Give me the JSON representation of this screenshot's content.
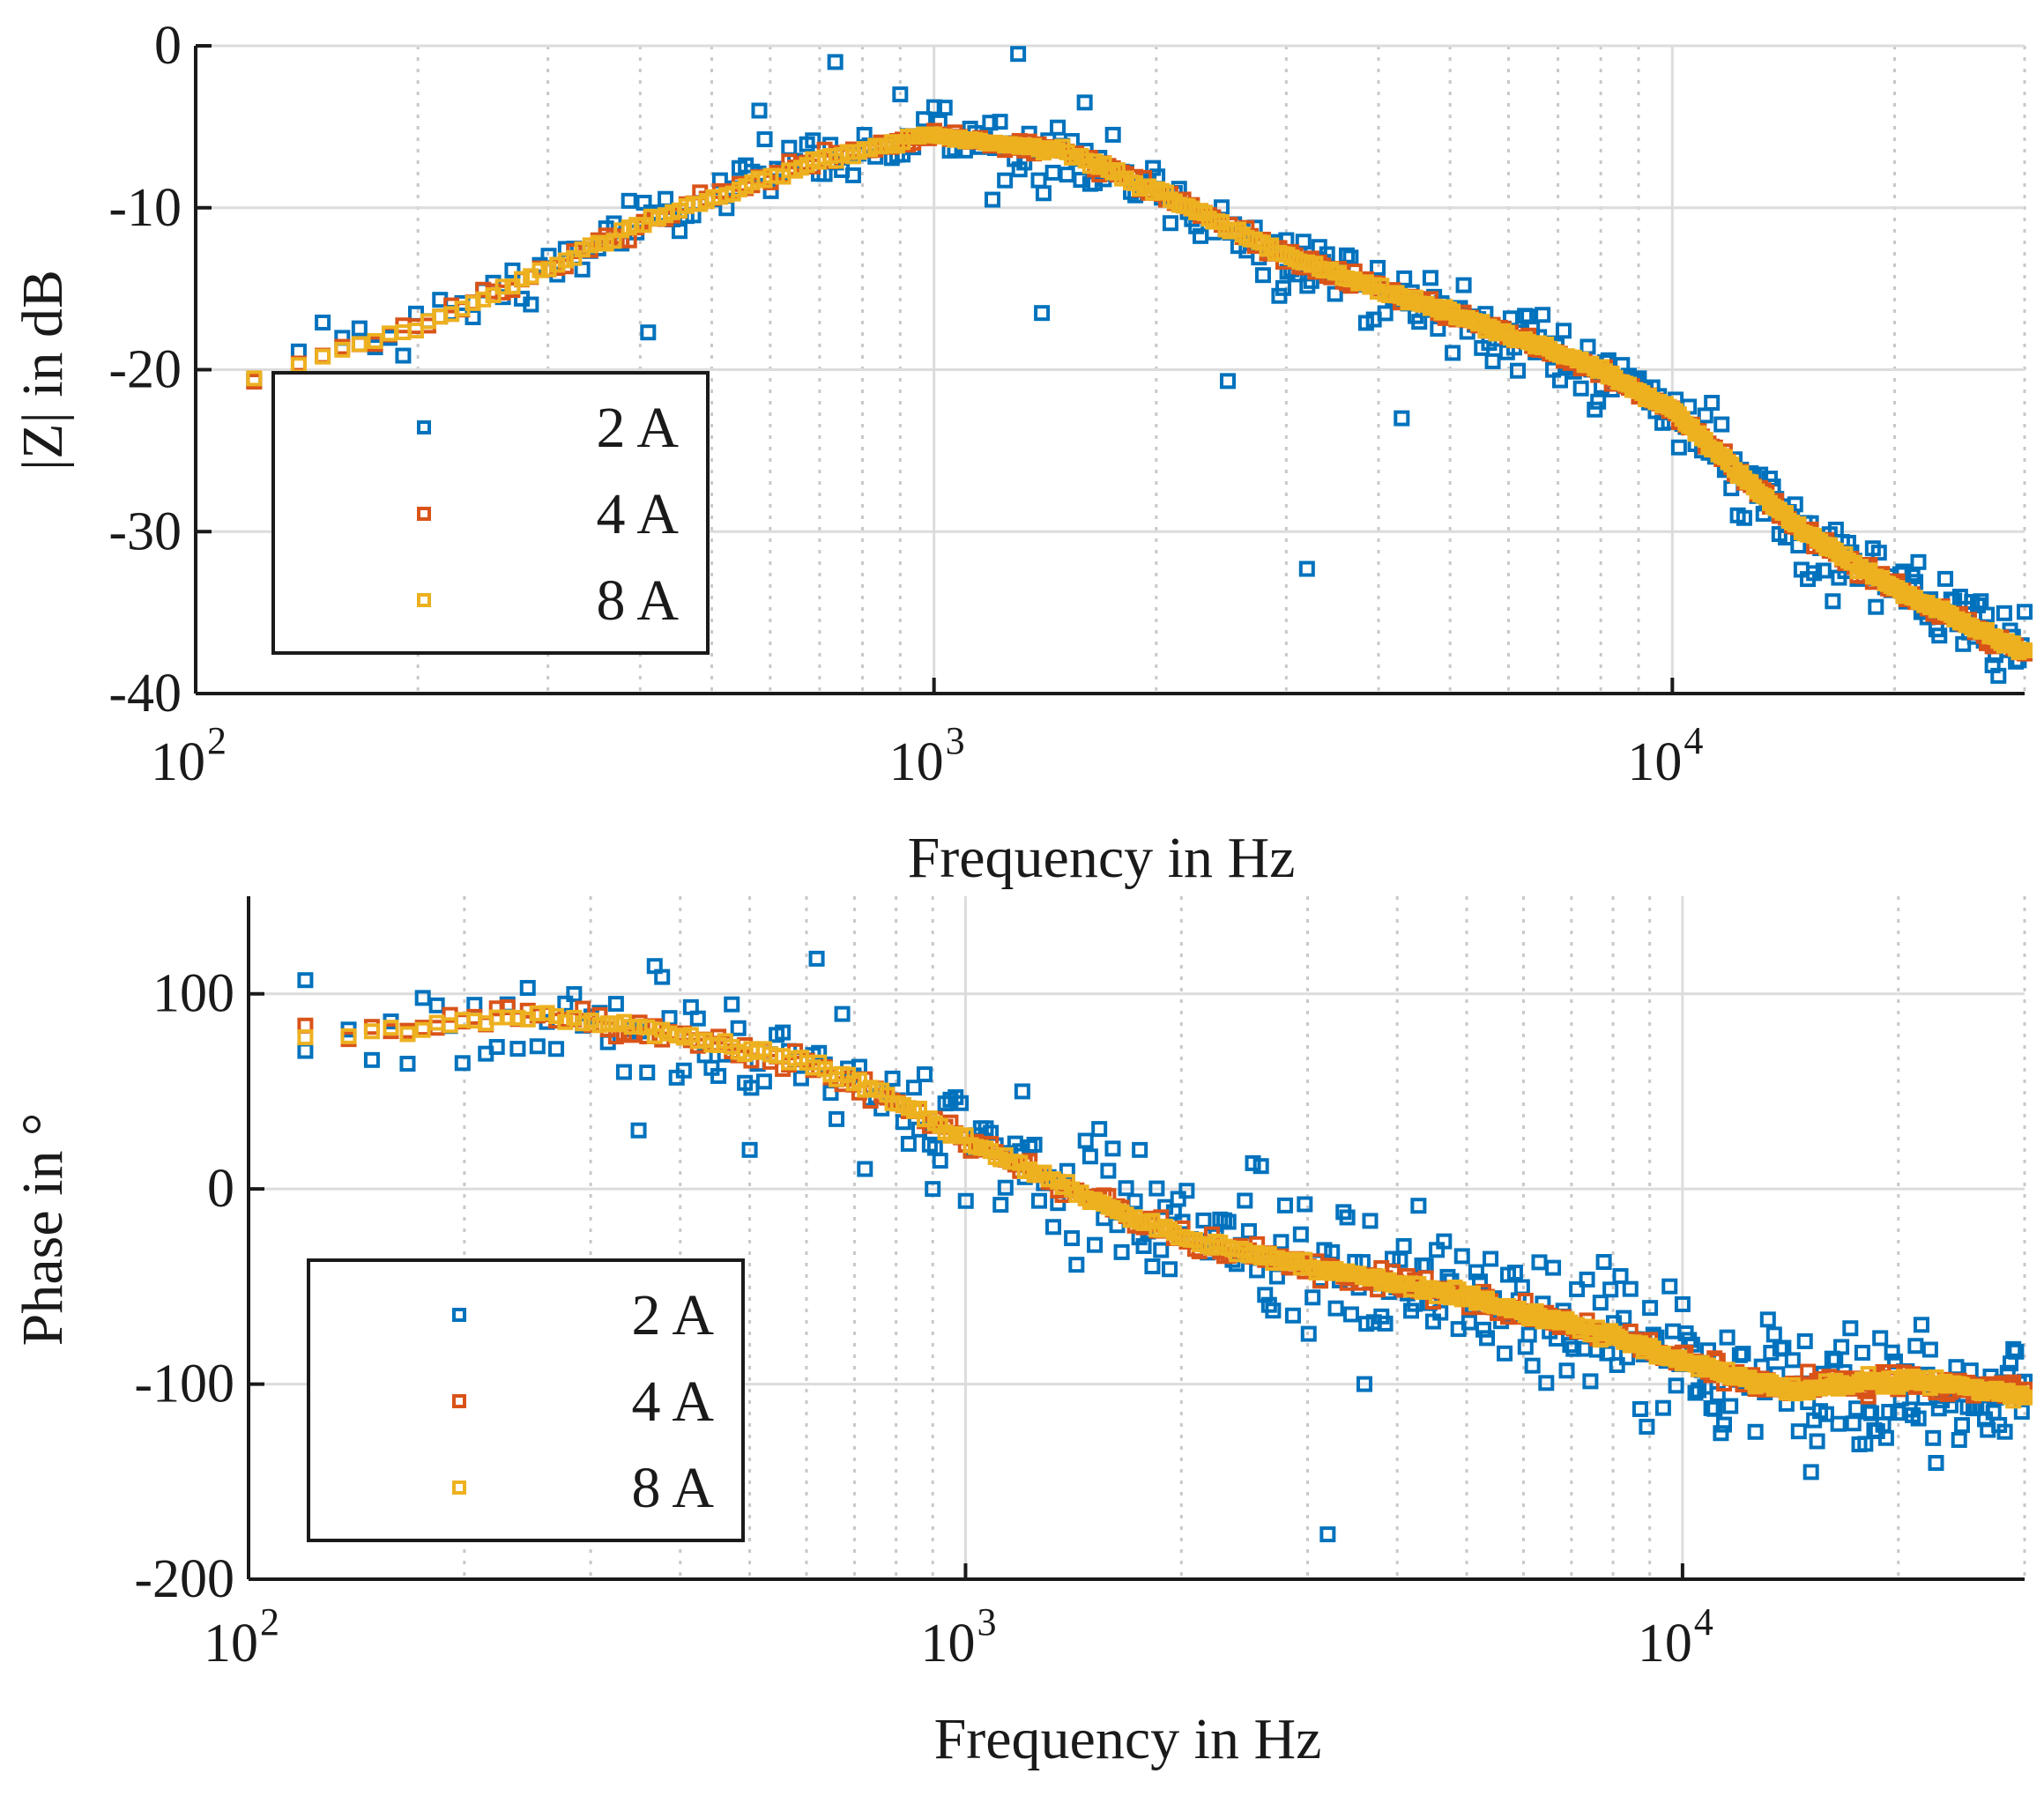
{
  "chart_data": [
    {
      "type": "scatter",
      "xscale": "log",
      "xlabel": "Frequency in Hz",
      "ylabel": "|Z| in dB",
      "xlim": [
        100,
        30000
      ],
      "ylim": [
        -40,
        0
      ],
      "xticks": [
        100,
        1000,
        10000
      ],
      "xtick_labels": [
        {
          "base": "10",
          "exp": "2"
        },
        {
          "base": "10",
          "exp": "3"
        },
        {
          "base": "10",
          "exp": "4"
        }
      ],
      "yticks": [
        0,
        -10,
        -20,
        -30,
        -40
      ],
      "ytick_labels": [
        "0",
        "-10",
        "-20",
        "-30",
        "-40"
      ],
      "grid": true,
      "legend_position": "left",
      "series": [
        {
          "name": "2 A",
          "color": "#0072BD",
          "anchors_f": [
            120,
            200,
            400,
            700,
            1000,
            1500,
            2000,
            3000,
            5000,
            8000,
            10000,
            15000,
            20000,
            30000
          ],
          "anchors_v": [
            -20,
            -17.5,
            -11,
            -7,
            -5.5,
            -6.5,
            -9,
            -13,
            -16.5,
            -20,
            -22.5,
            -30,
            -33.5,
            -37.5
          ],
          "scatter_rel": 0.05,
          "outliers": [
            [
              735,
              -1
            ],
            [
              1300,
              -0.5
            ],
            [
              1600,
              -3.5
            ],
            [
              1400,
              -16.5
            ],
            [
              3200,
              -32.3
            ],
            [
              580,
              -4
            ],
            [
              2500,
              -20.7
            ],
            [
              4300,
              -23
            ],
            [
              410,
              -17.7
            ],
            [
              900,
              -3
            ],
            [
              1200,
              -9.5
            ],
            [
              3000,
              -12
            ]
          ]
        },
        {
          "name": "4 A",
          "color": "#D95319",
          "anchors_f": [
            120,
            200,
            400,
            700,
            1000,
            1500,
            2000,
            3000,
            5000,
            8000,
            10000,
            15000,
            20000,
            30000
          ],
          "anchors_v": [
            -20.5,
            -17.5,
            -11,
            -7,
            -5.5,
            -6.5,
            -9,
            -13,
            -16.5,
            -20,
            -22.5,
            -30,
            -33.5,
            -37.5
          ],
          "scatter_rel": 0.012,
          "outliers": []
        },
        {
          "name": "8 A",
          "color": "#EDB120",
          "anchors_f": [
            120,
            200,
            400,
            700,
            1000,
            1500,
            2000,
            3000,
            5000,
            8000,
            10000,
            15000,
            20000,
            30000
          ],
          "anchors_v": [
            -20.5,
            -17.5,
            -11,
            -7,
            -5.5,
            -6.5,
            -9,
            -13,
            -16.5,
            -20,
            -22.5,
            -30,
            -33.5,
            -37.5
          ],
          "scatter_rel": 0.006,
          "outliers": []
        }
      ]
    },
    {
      "type": "scatter",
      "xscale": "log",
      "xlabel": "Frequency in Hz",
      "ylabel": "Phase in °",
      "xlim": [
        100,
        30000
      ],
      "ylim": [
        -200,
        150
      ],
      "xticks": [
        100,
        1000,
        10000
      ],
      "xtick_labels": [
        {
          "base": "10",
          "exp": "2"
        },
        {
          "base": "10",
          "exp": "3"
        },
        {
          "base": "10",
          "exp": "4"
        }
      ],
      "yticks": [
        100,
        0,
        -100,
        -200
      ],
      "ytick_labels": [
        "100",
        "0",
        "-100",
        "-200"
      ],
      "grid": true,
      "legend_position": "bottom-left",
      "series": [
        {
          "name": "2 A",
          "color": "#0072BD",
          "anchors_f": [
            120,
            150,
            250,
            400,
            600,
            800,
            1000,
            1500,
            2000,
            3000,
            5000,
            8000,
            10000,
            14000,
            20000,
            30000
          ],
          "anchors_v": [
            78,
            80,
            90,
            78,
            65,
            45,
            25,
            -5,
            -25,
            -40,
            -55,
            -75,
            -88,
            -103,
            -98,
            -105
          ],
          "scatter_rel": 0.1,
          "outliers": [
            [
              120,
              107
            ],
            [
              620,
              118
            ],
            [
              3200,
              -177
            ],
            [
              350,
              30
            ],
            [
              1200,
              50
            ],
            [
              1750,
              20
            ],
            [
              3600,
              -100
            ],
            [
              900,
              0
            ],
            [
              500,
              20
            ]
          ]
        },
        {
          "name": "4 A",
          "color": "#D95319",
          "anchors_f": [
            120,
            150,
            250,
            400,
            600,
            800,
            1000,
            1500,
            2000,
            3000,
            5000,
            8000,
            10000,
            14000,
            20000,
            30000
          ],
          "anchors_v": [
            78,
            80,
            90,
            78,
            65,
            45,
            25,
            -5,
            -25,
            -40,
            -55,
            -75,
            -88,
            -103,
            -98,
            -105
          ],
          "scatter_rel": 0.015,
          "outliers": []
        },
        {
          "name": "8 A",
          "color": "#EDB120",
          "anchors_f": [
            120,
            150,
            250,
            400,
            600,
            800,
            1000,
            1500,
            2000,
            3000,
            5000,
            8000,
            10000,
            14000,
            20000,
            30000
          ],
          "anchors_v": [
            78,
            80,
            90,
            78,
            65,
            45,
            25,
            -5,
            -25,
            -40,
            -55,
            -75,
            -88,
            -103,
            -98,
            -105
          ],
          "scatter_rel": 0.008,
          "outliers": []
        }
      ]
    }
  ]
}
